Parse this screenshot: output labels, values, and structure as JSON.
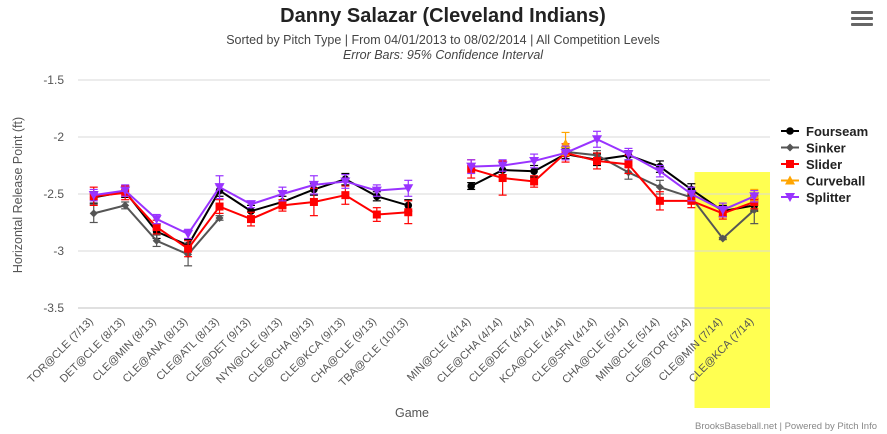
{
  "title": "Danny Salazar (Cleveland Indians)",
  "subtitle": "Sorted by Pitch Type | From 04/01/2013 to 08/02/2014 | All Competition Levels",
  "subtitle2": "Error Bars: 95% Confidence Interval",
  "credits": "BrooksBaseball.net | Powered by Pitch Info",
  "menu_icon": "hamburger-menu-icon",
  "chart_data": {
    "type": "line",
    "title": "Danny Salazar (Cleveland Indians)",
    "xlabel": "Game",
    "ylabel": "Horizontal Release Point (ft)",
    "ylim": [
      -3.5,
      -1.5
    ],
    "yticks": [
      "-1.5",
      "-2",
      "-2.5",
      "-3",
      "-3.5"
    ],
    "ytick_values": [
      -1.5,
      -2,
      -2.5,
      -3,
      -3.5
    ],
    "grid": true,
    "legend_position": "right",
    "highlight_band": {
      "from_index": 20,
      "to_index": 21,
      "color": "#ffff33"
    },
    "categories": [
      "TOR@CLE (7/13)",
      "DET@CLE (8/13)",
      "CLE@MIN (8/13)",
      "CLE@ANA (8/13)",
      "CLE@ATL (8/13)",
      "CLE@DET (9/13)",
      "NYN@CLE (9/13)",
      "CLE@CHA (9/13)",
      "CLE@KCA (9/13)",
      "CHA@CLE (9/13)",
      "TBA@CLE (10/13)",
      "",
      "MIN@CLE (4/14)",
      "CLE@CHA (4/14)",
      "CLE@DET (4/14)",
      "KCA@CLE (4/14)",
      "CLE@SFN (4/14)",
      "CHA@CLE (5/14)",
      "MIN@CLE (5/14)",
      "CLE@TOR (5/14)",
      "CLE@MIN (7/14)",
      "CLE@KCA (7/14)"
    ],
    "series": [
      {
        "name": "Fourseam",
        "color": "#000000",
        "marker": "circle",
        "values": [
          -2.53,
          -2.48,
          -2.83,
          -2.95,
          -2.47,
          -2.65,
          -2.57,
          -2.46,
          -2.37,
          -2.52,
          -2.6,
          null,
          -2.43,
          -2.29,
          -2.3,
          -2.15,
          -2.2,
          -2.16,
          -2.26,
          -2.46,
          -2.65,
          -2.6
        ],
        "errors": [
          0.05,
          0.05,
          0.06,
          0.05,
          0.05,
          0.05,
          0.05,
          0.05,
          0.05,
          0.04,
          0.05,
          null,
          0.03,
          0.04,
          0.05,
          0.04,
          0.05,
          0.04,
          0.05,
          0.05,
          0.05,
          0.05
        ]
      },
      {
        "name": "Sinker",
        "color": "#555555",
        "marker": "diamond",
        "values": [
          -2.67,
          -2.6,
          -2.91,
          -3.03,
          -2.71,
          null,
          null,
          null,
          null,
          null,
          null,
          null,
          null,
          null,
          null,
          -2.13,
          -2.16,
          -2.31,
          -2.44,
          -2.53,
          -2.89,
          -2.64
        ],
        "errors": [
          0.08,
          0.03,
          0.05,
          0.1,
          0.02,
          null,
          null,
          null,
          null,
          null,
          null,
          null,
          null,
          null,
          null,
          0.03,
          0.04,
          0.06,
          0.06,
          0.04,
          0.01,
          0.12
        ]
      },
      {
        "name": "Slider",
        "color": "#ff0000",
        "marker": "square",
        "values": [
          -2.52,
          -2.49,
          -2.79,
          -2.98,
          -2.61,
          -2.72,
          -2.6,
          -2.57,
          -2.51,
          -2.68,
          -2.66,
          null,
          -2.28,
          -2.36,
          -2.39,
          -2.14,
          -2.21,
          -2.24,
          -2.56,
          -2.56,
          -2.67,
          -2.57
        ],
        "errors": [
          0.08,
          0.06,
          0.06,
          0.07,
          0.06,
          0.06,
          0.05,
          0.12,
          0.08,
          0.06,
          0.1,
          null,
          0.08,
          0.15,
          0.05,
          0.08,
          0.07,
          0.08,
          0.08,
          0.06,
          0.05,
          0.06
        ]
      },
      {
        "name": "Curveball",
        "color": "#ffa500",
        "marker": "triangle",
        "values": [
          null,
          null,
          null,
          null,
          null,
          null,
          null,
          null,
          null,
          null,
          null,
          null,
          null,
          null,
          null,
          -2.06,
          null,
          null,
          null,
          null,
          null,
          -2.51
        ],
        "errors": [
          null,
          null,
          null,
          null,
          null,
          null,
          null,
          null,
          null,
          null,
          null,
          null,
          null,
          null,
          null,
          0.1,
          null,
          null,
          null,
          null,
          null,
          0.05
        ]
      },
      {
        "name": "Splitter",
        "color": "#9933ff",
        "marker": "triangle-down",
        "values": [
          -2.51,
          -2.47,
          -2.72,
          -2.85,
          -2.44,
          -2.59,
          -2.5,
          -2.42,
          -2.39,
          -2.47,
          -2.45,
          null,
          -2.26,
          -2.25,
          -2.21,
          -2.14,
          -2.02,
          -2.15,
          -2.3,
          -2.5,
          -2.64,
          -2.52
        ],
        "errors": [
          0.05,
          0.05,
          0.04,
          0.04,
          0.1,
          0.03,
          0.06,
          0.08,
          0.06,
          0.05,
          0.07,
          null,
          0.06,
          0.05,
          0.06,
          0.06,
          0.07,
          0.05,
          0.05,
          0.06,
          0.06,
          0.05
        ]
      }
    ]
  }
}
